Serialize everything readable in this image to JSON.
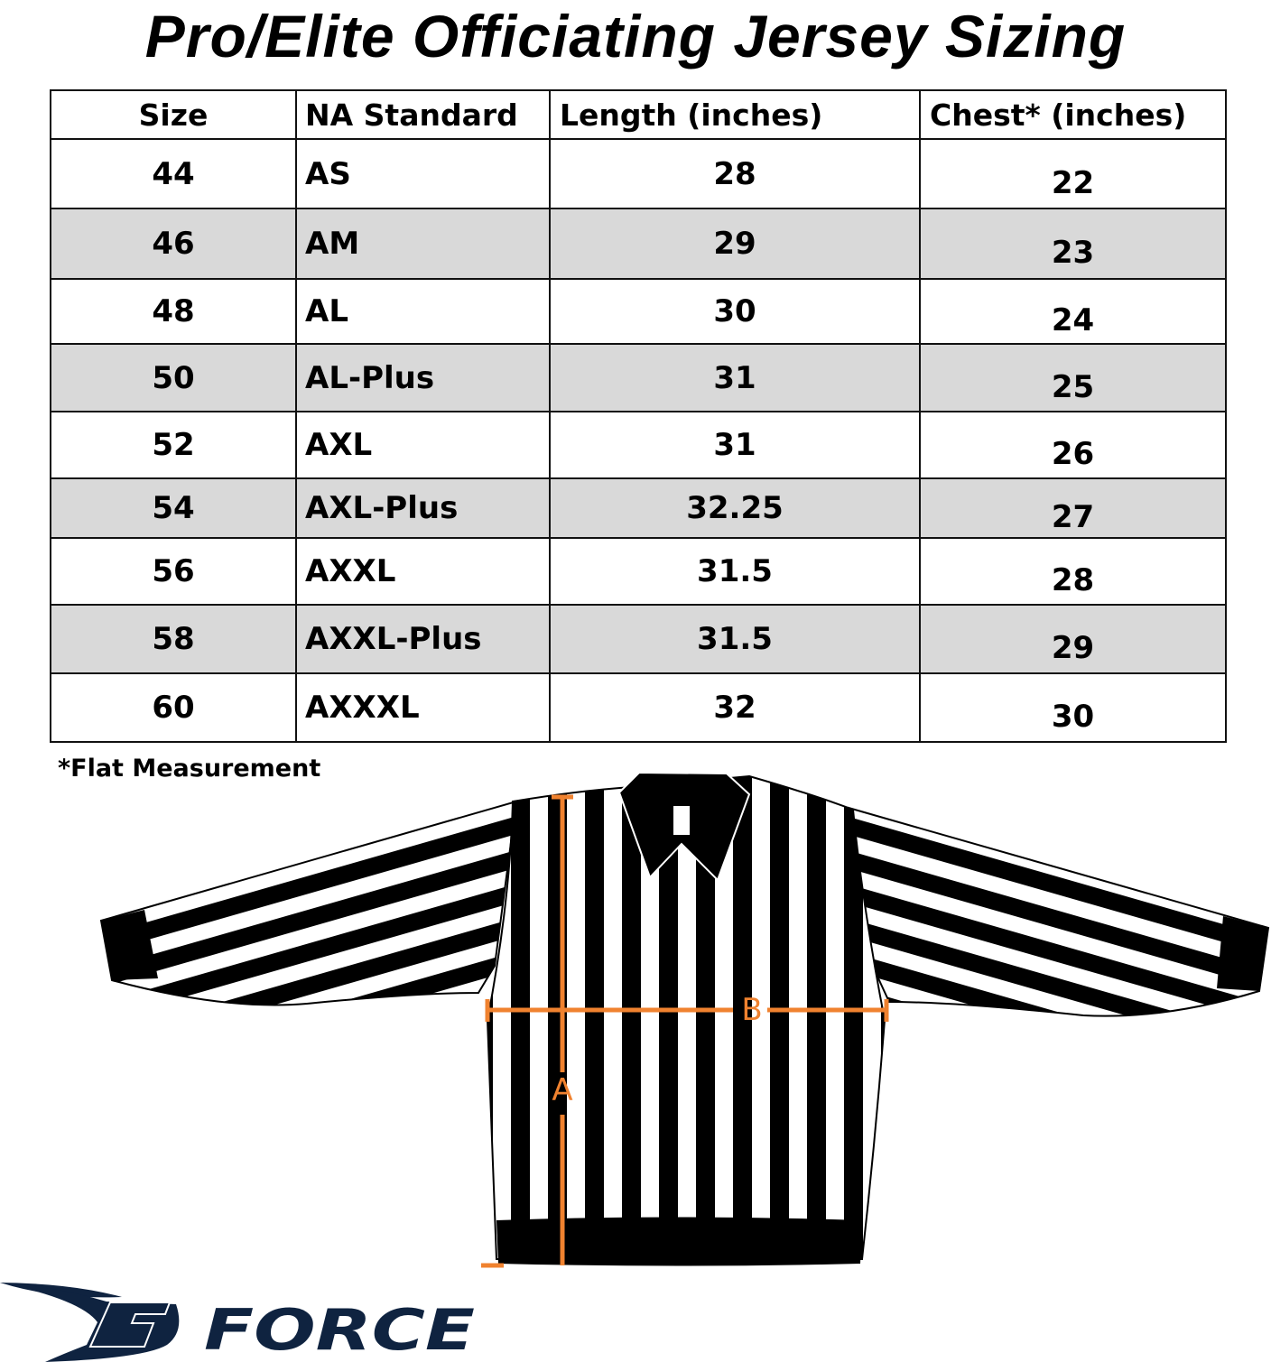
{
  "title": "Pro/Elite Officiating Jersey Sizing",
  "table": {
    "headers": [
      "Size",
      "NA Standard",
      "Length (inches)",
      "Chest* (inches)"
    ],
    "rows": [
      [
        "44",
        "AS",
        "28",
        "22"
      ],
      [
        "46",
        "AM",
        "29",
        "23"
      ],
      [
        "48",
        "AL",
        "30",
        "24"
      ],
      [
        "50",
        "AL-Plus",
        "31",
        "25"
      ],
      [
        "52",
        "AXL",
        "31",
        "26"
      ],
      [
        "54",
        "AXL-Plus",
        "32.25",
        "27"
      ],
      [
        "56",
        "AXXL",
        "31.5",
        "28"
      ],
      [
        "58",
        "AXXL-Plus",
        "31.5",
        "29"
      ],
      [
        "60",
        "AXXXL",
        "32",
        "30"
      ]
    ]
  },
  "footnote": "*Flat Measurement",
  "diagram": {
    "length_label": "A",
    "chest_label": "B",
    "measure_color": "#f0822f"
  },
  "logo": {
    "text": "FORCE",
    "color": "#0f2340"
  }
}
